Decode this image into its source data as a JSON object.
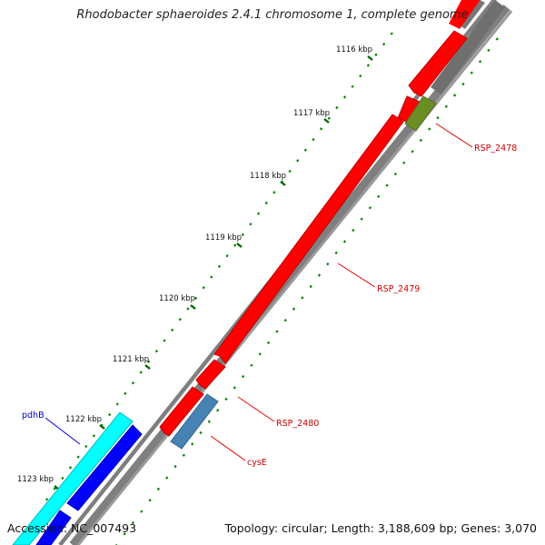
{
  "title": "Rhodobacter sphaeroides 2.4.1 chromosome 1, complete genome",
  "footer": {
    "accession": "Accession: NC_007493",
    "summary": "Topology: circular; Length: 3,188,609 bp; Genes: 3,070"
  },
  "ticks": [
    "1116 kbp",
    "1117 kbp",
    "1118 kbp",
    "1119 kbp",
    "1120 kbp",
    "1121 kbp",
    "1122 kbp",
    "1123 kbp"
  ],
  "genes": [
    {
      "name": "RSP_2478",
      "color": "#cc0000"
    },
    {
      "name": "RSP_2479",
      "color": "#cc0000"
    },
    {
      "name": "RSP_2480",
      "color": "#cc0000"
    },
    {
      "name": "cysE",
      "color": "#cc0000"
    },
    {
      "name": "pdhB",
      "color": "#0000cc"
    }
  ],
  "colors": {
    "forward_feature": "#ff0000",
    "rrna_like": "#6b8e23",
    "trna_like": "#4682b4",
    "cyan_feature": "#00ffff",
    "blue_feature": "#0000ff",
    "backbone": "#808080",
    "tick_mark": "#008000"
  }
}
